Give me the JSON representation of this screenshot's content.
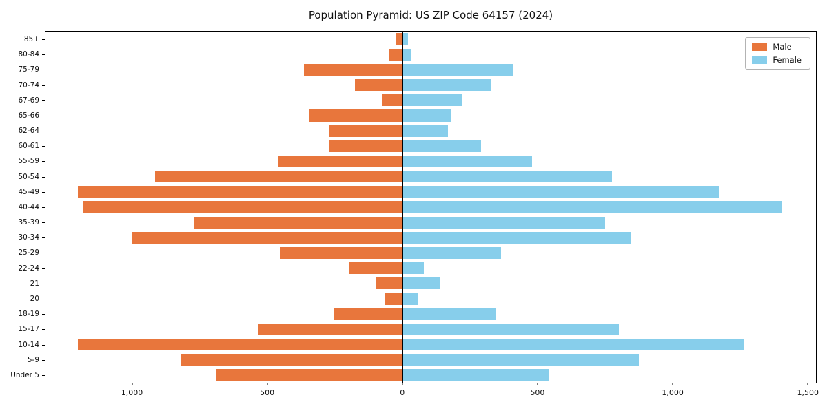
{
  "chart_data": {
    "type": "bar",
    "variant": "population-pyramid",
    "title": "Population Pyramid: US ZIP Code 64157 (2024)",
    "categories_top_to_bottom": [
      "85+",
      "80-84",
      "75-79",
      "70-74",
      "67-69",
      "65-66",
      "62-64",
      "60-61",
      "55-59",
      "50-54",
      "45-49",
      "40-44",
      "35-39",
      "30-34",
      "25-29",
      "22-24",
      "21",
      "20",
      "18-19",
      "15-17",
      "10-14",
      "5-9",
      "Under 5"
    ],
    "series": [
      {
        "name": "Male",
        "side": "left",
        "color": "#e8763c",
        "values": [
          25,
          50,
          365,
          175,
          75,
          345,
          270,
          270,
          460,
          915,
          1200,
          1180,
          770,
          1000,
          450,
          195,
          100,
          65,
          255,
          535,
          1200,
          820,
          690
        ]
      },
      {
        "name": "Female",
        "side": "right",
        "color": "#87ceeb",
        "values": [
          20,
          30,
          410,
          330,
          220,
          180,
          170,
          290,
          480,
          775,
          1170,
          1405,
          750,
          845,
          365,
          80,
          140,
          60,
          345,
          800,
          1265,
          875,
          540
        ]
      }
    ],
    "x_axis": {
      "min": -1320,
      "max": 1530,
      "ticks": [
        {
          "value": -1000,
          "label": "1,000"
        },
        {
          "value": -500,
          "label": "500"
        },
        {
          "value": 0,
          "label": "0"
        },
        {
          "value": 500,
          "label": "500"
        },
        {
          "value": 1000,
          "label": "1,000"
        },
        {
          "value": 1500,
          "label": "1,500"
        }
      ]
    },
    "legend": {
      "position": "upper right",
      "entries": [
        "Male",
        "Female"
      ]
    },
    "grid": false,
    "background": "#ffffff"
  }
}
